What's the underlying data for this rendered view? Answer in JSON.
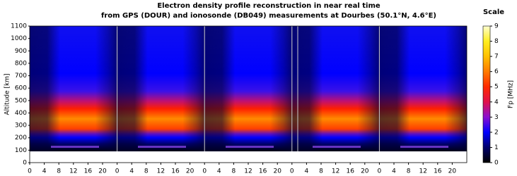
{
  "chart_data": {
    "type": "heatmap",
    "title": "Electron density profile reconstruction in near real time",
    "subtitle": "from GPS (DOUR) and ionosonde (DB049) measurements at Dourbes (50.1°N, 4.6°E)",
    "ylabel": "Altitude [km]",
    "ylim": [
      0,
      1100
    ],
    "yticks": [
      0,
      100,
      200,
      300,
      400,
      500,
      600,
      700,
      800,
      900,
      1000,
      1100
    ],
    "xlim": [
      0,
      120
    ],
    "xticks": [
      0,
      4,
      8,
      12,
      16,
      20,
      {
        "value": 24,
        "label": "0"
      },
      {
        "value": 28,
        "label": "4"
      },
      {
        "value": 32,
        "label": "8"
      },
      {
        "value": 36,
        "label": "12"
      },
      {
        "value": 40,
        "label": "16"
      },
      {
        "value": 44,
        "label": "20"
      },
      {
        "value": 48,
        "label": "0"
      },
      {
        "value": 52,
        "label": "4"
      },
      {
        "value": 56,
        "label": "8"
      },
      {
        "value": 60,
        "label": "12"
      },
      {
        "value": 64,
        "label": "16"
      },
      {
        "value": 68,
        "label": "20"
      },
      {
        "value": 72,
        "label": "0"
      },
      {
        "value": 76,
        "label": "4"
      },
      {
        "value": 80,
        "label": "8"
      },
      {
        "value": 84,
        "label": "12"
      },
      {
        "value": 88,
        "label": "16"
      },
      {
        "value": 92,
        "label": "20"
      },
      {
        "value": 96,
        "label": "0"
      },
      {
        "value": 100,
        "label": "4"
      },
      {
        "value": 104,
        "label": "8"
      },
      {
        "value": 108,
        "label": "12"
      },
      {
        "value": 112,
        "label": "16"
      },
      {
        "value": 116,
        "label": "20"
      }
    ],
    "colorbar": {
      "title": "Scale",
      "label": "Fp [MHz]",
      "lim": [
        0,
        9
      ],
      "ticks": [
        0,
        1,
        2,
        3,
        4,
        5,
        6,
        7,
        8,
        9
      ],
      "colors": [
        "#000000",
        "#00006a",
        "#0000ff",
        "#8a10d0",
        "#e0104a",
        "#ff2a00",
        "#ff7a00",
        "#ffc000",
        "#ffee20",
        "#ffffd0"
      ]
    }
  }
}
